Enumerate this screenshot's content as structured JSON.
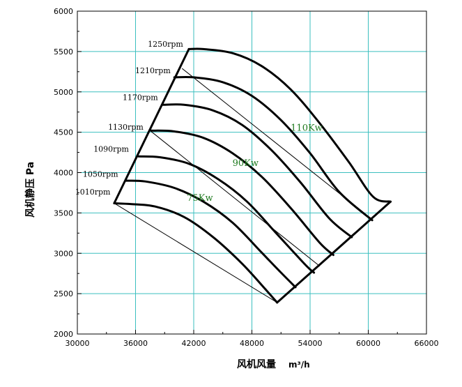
{
  "chart_data": {
    "type": "line",
    "xlabel": "风机风量",
    "xunit": "m³/h",
    "ylabel": "风机静压 Pa",
    "xlim": [
      30000,
      66000
    ],
    "ylim": [
      2000,
      6000
    ],
    "xticks": [
      30000,
      36000,
      42000,
      48000,
      54000,
      60000,
      66000
    ],
    "yticks": [
      2000,
      2500,
      3000,
      3500,
      4000,
      4500,
      5000,
      5500,
      6000
    ],
    "grid": true,
    "series": [
      {
        "name": "1010rpm",
        "points": [
          [
            33800,
            3620
          ],
          [
            35500,
            3610
          ],
          [
            38000,
            3580
          ],
          [
            41000,
            3450
          ],
          [
            44000,
            3200
          ],
          [
            47000,
            2870
          ],
          [
            49500,
            2540
          ],
          [
            50600,
            2390
          ]
        ]
      },
      {
        "name": "1050rpm",
        "points": [
          [
            35000,
            3900
          ],
          [
            37000,
            3890
          ],
          [
            40000,
            3810
          ],
          [
            43000,
            3640
          ],
          [
            46000,
            3380
          ],
          [
            49000,
            3010
          ],
          [
            51000,
            2760
          ],
          [
            52500,
            2580
          ]
        ]
      },
      {
        "name": "1090rpm",
        "points": [
          [
            36300,
            4200
          ],
          [
            38500,
            4190
          ],
          [
            41500,
            4110
          ],
          [
            44500,
            3920
          ],
          [
            47500,
            3640
          ],
          [
            50500,
            3250
          ],
          [
            53500,
            2860
          ],
          [
            54400,
            2760
          ]
        ]
      },
      {
        "name": "1130rpm",
        "points": [
          [
            37600,
            4520
          ],
          [
            40000,
            4510
          ],
          [
            43000,
            4430
          ],
          [
            46000,
            4240
          ],
          [
            49000,
            3950
          ],
          [
            52000,
            3560
          ],
          [
            55000,
            3130
          ],
          [
            56400,
            2980
          ]
        ]
      },
      {
        "name": "1170rpm",
        "points": [
          [
            38800,
            4840
          ],
          [
            41000,
            4840
          ],
          [
            44000,
            4770
          ],
          [
            47000,
            4590
          ],
          [
            50000,
            4280
          ],
          [
            53000,
            3880
          ],
          [
            56000,
            3430
          ],
          [
            58300,
            3200
          ]
        ]
      },
      {
        "name": "1210rpm",
        "points": [
          [
            40000,
            5180
          ],
          [
            42000,
            5180
          ],
          [
            45000,
            5120
          ],
          [
            48000,
            4950
          ],
          [
            51000,
            4650
          ],
          [
            54000,
            4240
          ],
          [
            57000,
            3760
          ],
          [
            60400,
            3410
          ]
        ]
      },
      {
        "name": "1250rpm",
        "points": [
          [
            41500,
            5530
          ],
          [
            43000,
            5530
          ],
          [
            46000,
            5480
          ],
          [
            49000,
            5320
          ],
          [
            52000,
            5030
          ],
          [
            55000,
            4610
          ],
          [
            58000,
            4130
          ],
          [
            60500,
            3700
          ],
          [
            62300,
            3640
          ]
        ]
      }
    ],
    "power_lines": [
      {
        "label": "110Kw",
        "points": [
          [
            40800,
            5290
          ],
          [
            60500,
            3410
          ]
        ],
        "label_at": [
          52000,
          4520
        ]
      },
      {
        "label": "90Kw",
        "points": [
          [
            37500,
            4520
          ],
          [
            55000,
            2840
          ]
        ],
        "label_at": [
          46000,
          4080
        ]
      },
      {
        "label": "75Kw",
        "points": [
          [
            33800,
            3620
          ],
          [
            50600,
            2390
          ]
        ],
        "label_at": [
          41300,
          3650
        ]
      }
    ],
    "rpm_labels": [
      {
        "text": "1250rpm",
        "at": [
          41200,
          5560
        ]
      },
      {
        "text": "1210rpm",
        "at": [
          39900,
          5230
        ]
      },
      {
        "text": "1170rpm",
        "at": [
          38600,
          4900
        ]
      },
      {
        "text": "1130rpm",
        "at": [
          37100,
          4530
        ]
      },
      {
        "text": "1090rpm",
        "at": [
          35600,
          4260
        ]
      },
      {
        "text": "1050rpm",
        "at": [
          34500,
          3950
        ]
      },
      {
        "text": "1010rpm",
        "at": [
          33700,
          3730
        ]
      }
    ]
  }
}
